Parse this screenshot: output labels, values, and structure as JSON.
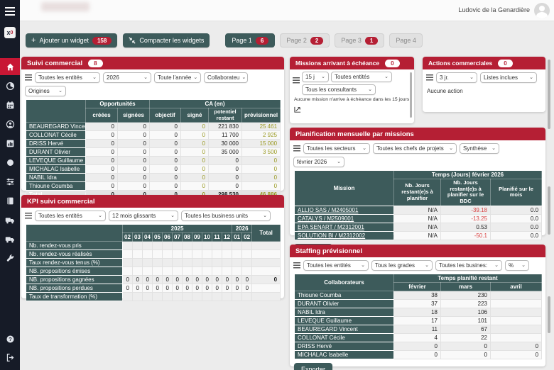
{
  "header": {
    "user_name": "Ludovic de la Genardière"
  },
  "toolbar": {
    "add_widget_label": "Ajouter un widget",
    "add_widget_badge": "158",
    "compact_label": "Compacter les widgets",
    "pages": [
      {
        "label": "Page 1",
        "badge": "6"
      },
      {
        "label": "Page 2",
        "badge": "2"
      },
      {
        "label": "Page 3",
        "badge": "1"
      },
      {
        "label": "Page 4",
        "badge": ""
      }
    ]
  },
  "sidebar": {
    "icons": [
      "menu-icon",
      "app-logo",
      "home-icon",
      "pie-chart-icon",
      "calendar-icon",
      "user-circle-icon",
      "bar-chart-icon",
      "circle-icon",
      "sliders-icon",
      "book-icon",
      "truck-icon",
      "truck2-icon",
      "wrench-icon",
      "help-icon",
      "logout-icon"
    ]
  },
  "colors": {
    "accent_red": "#b51f34",
    "teal": "#3d5b5b",
    "olive_value": "#9a9a23",
    "negative_value": "#d94343",
    "sidebar_bg": "#161b27"
  },
  "suivi": {
    "title": "Suivi commercial",
    "badge": "8",
    "filters": [
      "Toutes les entités",
      "2026",
      "Toute l'année",
      "Collaborateu",
      "Origines"
    ],
    "group1": "Opportunités",
    "group2": "CA (en)",
    "columns": [
      "créées",
      "signées",
      "objectif",
      "signé",
      "potentiel restant",
      "prévisionnel"
    ],
    "rows": [
      {
        "label": "BEAUREGARD Vincent",
        "values": [
          "0",
          "0",
          "0",
          "0",
          "221 830",
          "25 461"
        ]
      },
      {
        "label": "COLLONAT Cécile",
        "values": [
          "0",
          "0",
          "0",
          "0",
          "11 700",
          "2 925"
        ]
      },
      {
        "label": "DRISS Hervé",
        "values": [
          "0",
          "0",
          "0",
          "0",
          "30 000",
          "15 000"
        ]
      },
      {
        "label": "DURANT Olivier",
        "values": [
          "0",
          "0",
          "0",
          "0",
          "35 000",
          "3 500"
        ]
      },
      {
        "label": "LEVEQUE Guillaume",
        "values": [
          "0",
          "0",
          "0",
          "0",
          "0",
          "0"
        ]
      },
      {
        "label": "MICHALAC Isabelle",
        "values": [
          "0",
          "0",
          "0",
          "0",
          "0",
          "0"
        ]
      },
      {
        "label": "NABIL Idra",
        "values": [
          "0",
          "0",
          "0",
          "0",
          "0",
          "0"
        ]
      },
      {
        "label": "Thioune Coumba",
        "values": [
          "0",
          "0",
          "0",
          "0",
          "0",
          "0"
        ]
      },
      {
        "label": "Total",
        "bold": true,
        "values": [
          "0",
          "0",
          "0",
          "0",
          "298 530",
          "46 886"
        ]
      }
    ]
  },
  "kpi": {
    "title": "KPI suivi commercial",
    "filters": [
      "Toutes les entités",
      "12 mois glissants",
      "Toutes les business units"
    ],
    "year1": "2025",
    "year2": "2026",
    "total_label": "Total",
    "months": [
      "02",
      "03",
      "04",
      "05",
      "06",
      "07",
      "08",
      "09",
      "10",
      "11",
      "12",
      "01",
      "02"
    ],
    "rows": [
      {
        "label": "Nb. rendez-vous pris",
        "values": [
          "",
          "",
          "",
          "",
          "",
          "",
          "",
          "",
          "",
          "",
          "",
          "",
          "",
          ""
        ]
      },
      {
        "label": "Nb. rendez-vous réalisés",
        "values": [
          "",
          "",
          "",
          "",
          "",
          "",
          "",
          "",
          "",
          "",
          "",
          "",
          "",
          ""
        ]
      },
      {
        "label": "Taux rendez-vous tenus (%)",
        "values": [
          "",
          "",
          "",
          "",
          "",
          "",
          "",
          "",
          "",
          "",
          "",
          "",
          "",
          ""
        ]
      },
      {
        "label": "NB. propositions émises",
        "values": [
          "",
          "",
          "",
          "",
          "",
          "",
          "",
          "",
          "",
          "",
          "",
          "",
          "",
          ""
        ]
      },
      {
        "label": "NB. propositions gagnées",
        "values": [
          "0",
          "0",
          "0",
          "0",
          "0",
          "0",
          "0",
          "0",
          "0",
          "0",
          "0",
          "0",
          "0",
          "0"
        ]
      },
      {
        "label": "NB. propositions perdues",
        "values": [
          "0",
          "0",
          "0",
          "0",
          "0",
          "0",
          "0",
          "0",
          "0",
          "0",
          "0",
          "0",
          "0",
          ""
        ]
      },
      {
        "label": "Taux de transformation (%)",
        "values": [
          "",
          "",
          "",
          "",
          "",
          "",
          "",
          "",
          "",
          "",
          "",
          "",
          "",
          ""
        ]
      }
    ]
  },
  "missions": {
    "title": "Missions arrivant à échéance",
    "badge": "0",
    "filters": [
      "15 j",
      "Toutes entités",
      "Tous les consultants"
    ],
    "empty_text": "Aucune mission n'arrive à échéance dans les 15 jours"
  },
  "actions": {
    "title": "Actions commerciales",
    "badge": "0",
    "filters": [
      "3 jr.",
      "Listes inclues"
    ],
    "empty_text": "Aucune action"
  },
  "planification": {
    "title": "Planification mensuelle par missions",
    "filters": [
      "Toutes les secteurs",
      "Toutes les chefs de projets",
      "Synthèse",
      "février 2026"
    ],
    "col_mission": "Mission",
    "group": "Temps (Jours) février 2026",
    "columns": [
      "Nb. Jours restant(e)s à planifier",
      "Nb. Jours restant(e)s à planifier sur le BDC",
      "Planifié sur le mois"
    ],
    "rows": [
      {
        "label": "ALLIO SAS / M2405001",
        "values": [
          "N/A",
          "-39.18",
          "0.0"
        ]
      },
      {
        "label": "CATALYS / M2509001",
        "values": [
          "N/A",
          "-13.25",
          "0.0"
        ]
      },
      {
        "label": "EPA SENART / M2312001",
        "values": [
          "N/A",
          "0.53",
          "0.0"
        ]
      },
      {
        "label": "SOLUTION BI / M2312002",
        "values": [
          "N/A",
          "-50.1",
          "0.0"
        ]
      }
    ],
    "export_label": "Exporter"
  },
  "staffing": {
    "title": "Staffing prévisionnel",
    "filters": [
      "Toutes les entités",
      "Tous les grades",
      "Toutes les busines:",
      "%"
    ],
    "col_collaborators": "Collaborateurs",
    "group": "Temps planifié restant",
    "columns": [
      "février",
      "mars",
      "avril"
    ],
    "rows": [
      {
        "label": "Thioune Coumba",
        "values": [
          "38",
          "230",
          ""
        ]
      },
      {
        "label": "DURANT Olivier",
        "values": [
          "37",
          "223",
          ""
        ]
      },
      {
        "label": "NABIL Idra",
        "values": [
          "18",
          "106",
          ""
        ]
      },
      {
        "label": "LEVEQUE Guillaume",
        "values": [
          "17",
          "101",
          ""
        ]
      },
      {
        "label": "BEAUREGARD Vincent",
        "values": [
          "11",
          "67",
          ""
        ]
      },
      {
        "label": "COLLONAT Cécile",
        "values": [
          "4",
          "22",
          ""
        ]
      },
      {
        "label": "DRISS Hervé",
        "values": [
          "0",
          "0",
          "0"
        ]
      },
      {
        "label": "MICHALAC Isabelle",
        "values": [
          "0",
          "0",
          "0"
        ]
      }
    ],
    "export_label": "Exporter"
  }
}
